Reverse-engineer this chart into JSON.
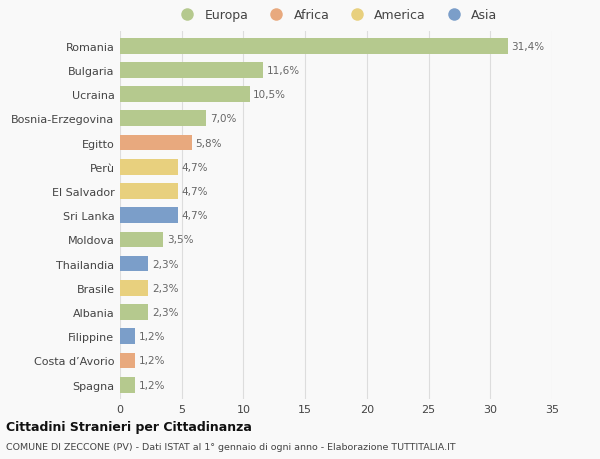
{
  "categories": [
    "Romania",
    "Bulgaria",
    "Ucraina",
    "Bosnia-Erzegovina",
    "Egitto",
    "Perù",
    "El Salvador",
    "Sri Lanka",
    "Moldova",
    "Thailandia",
    "Brasile",
    "Albania",
    "Filippine",
    "Costa d’Avorio",
    "Spagna"
  ],
  "values": [
    31.4,
    11.6,
    10.5,
    7.0,
    5.8,
    4.7,
    4.7,
    4.7,
    3.5,
    2.3,
    2.3,
    2.3,
    1.2,
    1.2,
    1.2
  ],
  "labels": [
    "31,4%",
    "11,6%",
    "10,5%",
    "7,0%",
    "5,8%",
    "4,7%",
    "4,7%",
    "4,7%",
    "3,5%",
    "2,3%",
    "2,3%",
    "2,3%",
    "1,2%",
    "1,2%",
    "1,2%"
  ],
  "continents": [
    "Europa",
    "Europa",
    "Europa",
    "Europa",
    "Africa",
    "America",
    "America",
    "Asia",
    "Europa",
    "Asia",
    "America",
    "Europa",
    "Asia",
    "Africa",
    "Europa"
  ],
  "continent_colors": {
    "Europa": "#b5c98e",
    "Africa": "#e8a97e",
    "America": "#e8d07e",
    "Asia": "#7b9ec9"
  },
  "legend_order": [
    "Europa",
    "Africa",
    "America",
    "Asia"
  ],
  "xlim": [
    0,
    35
  ],
  "xticks": [
    0,
    5,
    10,
    15,
    20,
    25,
    30,
    35
  ],
  "title": "Cittadini Stranieri per Cittadinanza",
  "subtitle": "COMUNE DI ZECCONE (PV) - Dati ISTAT al 1° gennaio di ogni anno - Elaborazione TUTTITALIA.IT",
  "bg_color": "#f9f9f9",
  "bar_height": 0.65,
  "grid_color": "#dddddd",
  "label_color": "#666666",
  "text_color": "#444444"
}
